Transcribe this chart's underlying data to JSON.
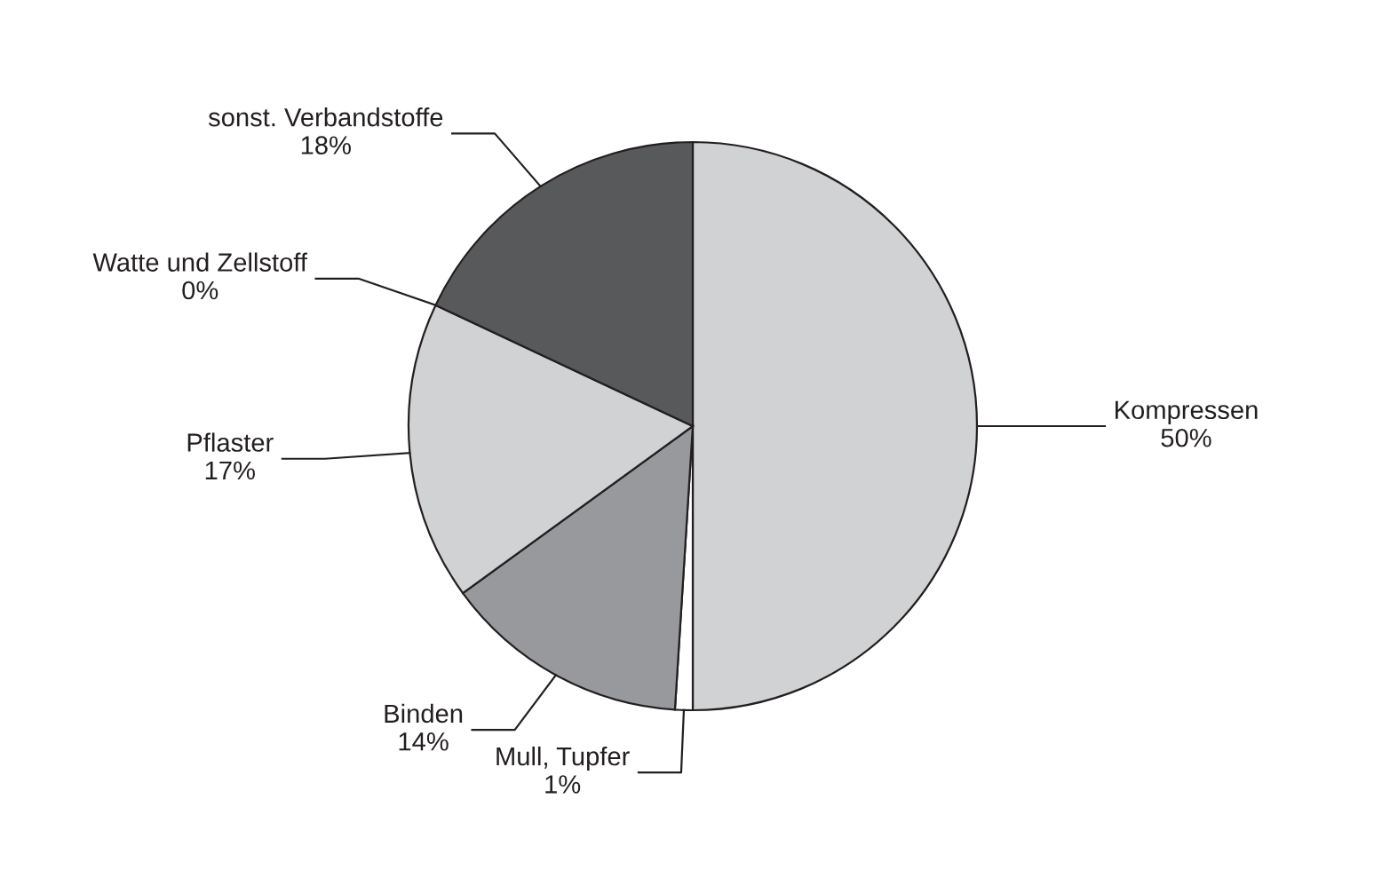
{
  "chart_data": {
    "type": "pie",
    "categories": [
      "Kompressen",
      "Mull, Tupfer",
      "Binden",
      "Pflaster",
      "Watte und Zellstoff",
      "sonst. Verbandstoffe"
    ],
    "values": [
      50,
      1,
      14,
      17,
      0,
      18
    ],
    "colors": [
      "#d1d2d4",
      "#ffffff",
      "#98999c",
      "#d1d2d4",
      "#bcbdc0",
      "#58595b"
    ],
    "value_labels": [
      "50%",
      "1%",
      "14%",
      "17%",
      "0%",
      "18%"
    ]
  }
}
